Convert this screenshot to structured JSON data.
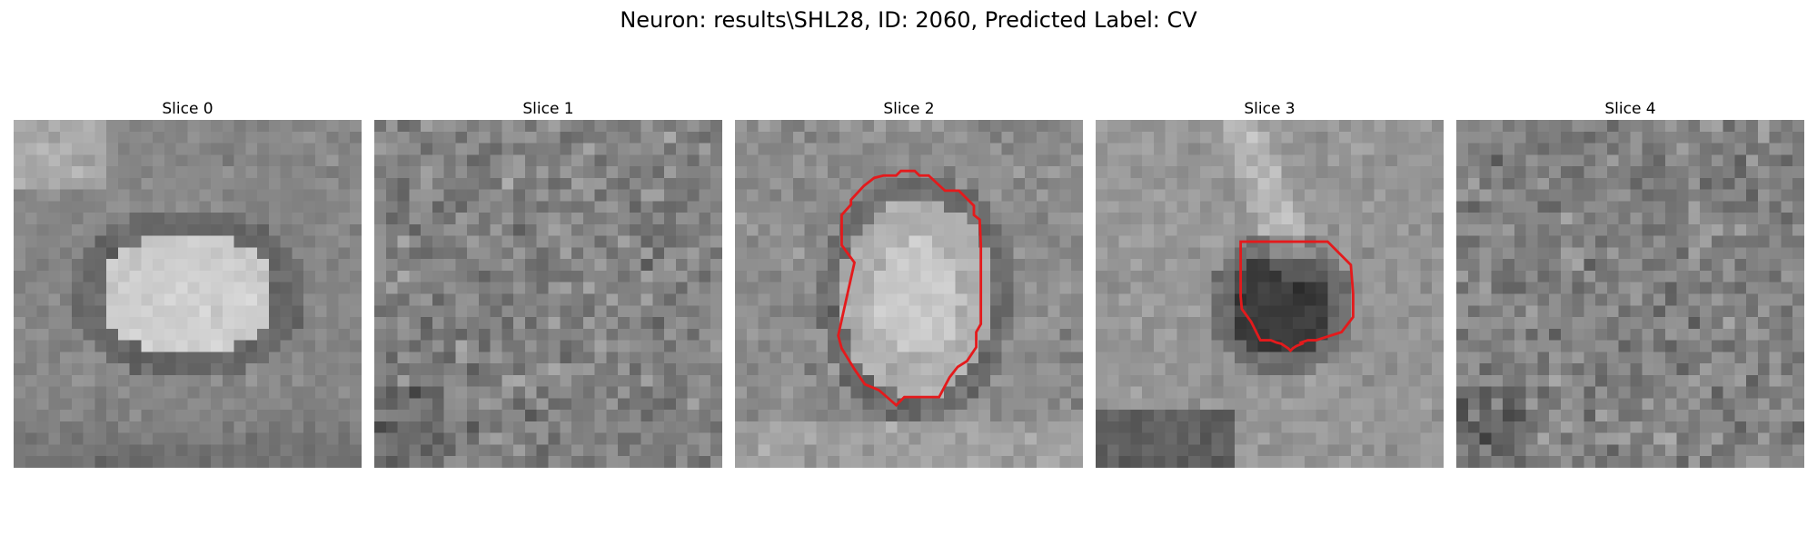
{
  "figure": {
    "title": "Neuron: results\\SHL28, ID: 2060, Predicted Label: CV"
  },
  "panels": [
    {
      "title": "Slice 0",
      "pattern": "bright-blob",
      "has_contour": false
    },
    {
      "title": "Slice 1",
      "pattern": "noise",
      "has_contour": false
    },
    {
      "title": "Slice 2",
      "pattern": "bright-blob-in-ring",
      "has_contour": true
    },
    {
      "title": "Slice 3",
      "pattern": "dark-blob",
      "has_contour": true
    },
    {
      "title": "Slice 4",
      "pattern": "noise",
      "has_contour": false
    }
  ],
  "contour_color": "#e41a1c",
  "colormap": "gray"
}
